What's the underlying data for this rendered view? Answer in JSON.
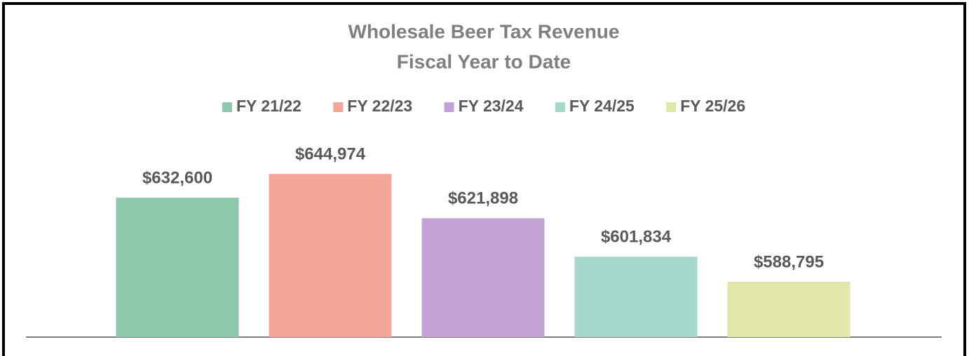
{
  "chart_data": {
    "type": "bar",
    "title": "Wholesale Beer Tax Revenue",
    "subtitle": "Fiscal Year to Date",
    "categories": [
      "FY 21/22",
      "FY 22/23",
      "FY 23/24",
      "FY 24/25",
      "FY 25/26"
    ],
    "values": [
      632600,
      644974,
      621898,
      601834,
      588795
    ],
    "value_labels": [
      "$632,600",
      "$644,974",
      "$621,898",
      "$601,834",
      "$588,795"
    ],
    "colors": [
      "#8dc8ad",
      "#f4a698",
      "#c3a3d6",
      "#a6d8cc",
      "#e1e6a9"
    ],
    "ylim": [
      560000,
      660000
    ],
    "legend": "top"
  }
}
